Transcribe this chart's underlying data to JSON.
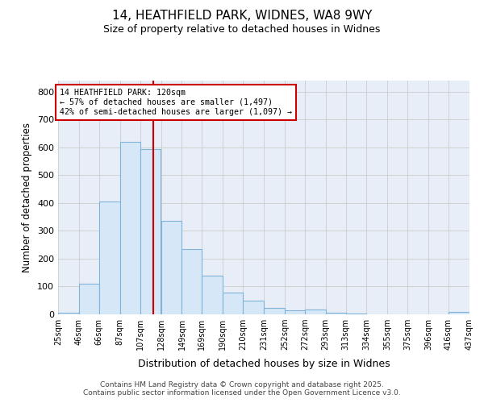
{
  "title_line1": "14, HEATHFIELD PARK, WIDNES, WA8 9WY",
  "title_line2": "Size of property relative to detached houses in Widnes",
  "xlabel": "Distribution of detached houses by size in Widnes",
  "ylabel": "Number of detached properties",
  "bin_edges": [
    25,
    46,
    66,
    87,
    107,
    128,
    149,
    169,
    190,
    210,
    231,
    252,
    272,
    293,
    313,
    334,
    355,
    375,
    396,
    416,
    437
  ],
  "bar_heights": [
    5,
    110,
    405,
    620,
    595,
    335,
    235,
    138,
    78,
    48,
    24,
    15,
    17,
    5,
    2,
    0,
    0,
    0,
    0,
    8
  ],
  "bar_color": "#d6e8f7",
  "bar_edge_color": "#7fb3d9",
  "property_size": 120,
  "vline_color": "#cc0000",
  "annotation_text": "14 HEATHFIELD PARK: 120sqm\n← 57% of detached houses are smaller (1,497)\n42% of semi-detached houses are larger (1,097) →",
  "annotation_box_color": "#cc0000",
  "ylim": [
    0,
    840
  ],
  "yticks": [
    0,
    100,
    200,
    300,
    400,
    500,
    600,
    700,
    800
  ],
  "tick_labels": [
    "25sqm",
    "46sqm",
    "66sqm",
    "87sqm",
    "107sqm",
    "128sqm",
    "149sqm",
    "169sqm",
    "190sqm",
    "210sqm",
    "231sqm",
    "252sqm",
    "272sqm",
    "293sqm",
    "313sqm",
    "334sqm",
    "355sqm",
    "375sqm",
    "396sqm",
    "416sqm",
    "437sqm"
  ],
  "footer_line1": "Contains HM Land Registry data © Crown copyright and database right 2025.",
  "footer_line2": "Contains public sector information licensed under the Open Government Licence v3.0.",
  "background_color": "#ffffff",
  "grid_color": "#cccccc",
  "plot_bg_color": "#e8eef8"
}
